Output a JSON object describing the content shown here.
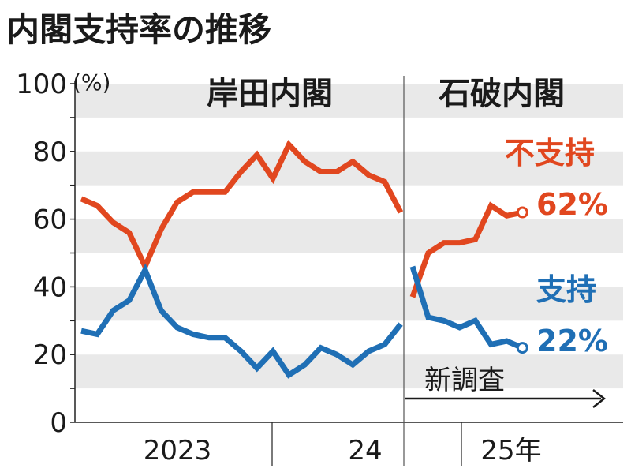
{
  "title": "内閣支持率の推移",
  "unit": "(%)",
  "colors": {
    "disapprove": "#e1471f",
    "approve": "#1f6fb5",
    "band": "#e9e9e9",
    "axis": "#222222"
  },
  "chart_data": {
    "type": "line",
    "ylim": [
      0,
      100
    ],
    "yticks": [
      0,
      20,
      40,
      60,
      80,
      100
    ],
    "grid": "horizontal bands",
    "x_labels": [
      "2023",
      "24",
      "25年"
    ],
    "eras": [
      {
        "label": "岸田内閣"
      },
      {
        "label": "石破内閣"
      }
    ],
    "series": [
      {
        "name": "不支持",
        "final_label": "62%",
        "segments": [
          [
            66,
            64,
            59,
            56,
            46,
            57,
            65,
            68,
            68,
            68,
            74,
            79,
            72,
            82,
            77,
            74,
            74,
            77,
            73,
            71,
            62
          ],
          [
            37,
            50,
            53,
            53,
            54,
            64,
            61,
            62
          ]
        ]
      },
      {
        "name": "支持",
        "final_label": "22%",
        "segments": [
          [
            27,
            26,
            33,
            36,
            45,
            33,
            28,
            26,
            25,
            25,
            21,
            16,
            21,
            14,
            17,
            22,
            20,
            17,
            21,
            23,
            29
          ],
          [
            46,
            31,
            30,
            28,
            30,
            23,
            24,
            22
          ]
        ]
      }
    ],
    "annotation": {
      "label": "新調査"
    }
  }
}
